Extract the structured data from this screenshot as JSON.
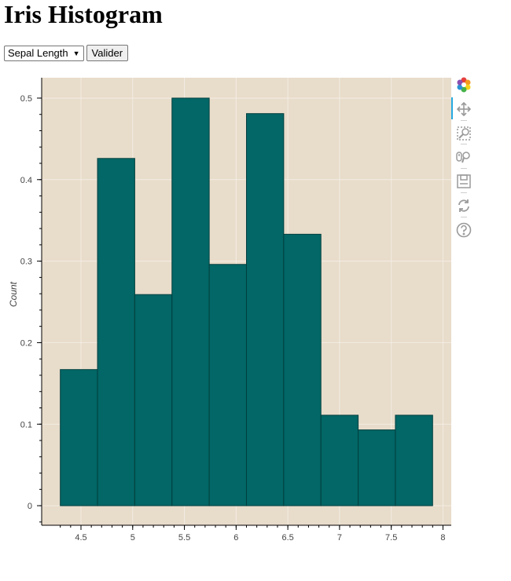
{
  "page": {
    "title": "Iris Histogram"
  },
  "controls": {
    "select_value": "Sepal Length",
    "button_label": "Valider"
  },
  "colors": {
    "bar_fill": "#026766",
    "bar_stroke": "#023f3f",
    "background": "#e8dcca"
  },
  "toolbar": [
    "bokeh-logo-icon",
    "pan-icon",
    "box-zoom-icon",
    "wheel-zoom-icon",
    "save-icon",
    "reset-icon",
    "help-icon"
  ],
  "chart_data": {
    "type": "bar",
    "title": "",
    "xlabel": "",
    "ylabel": "Count",
    "xlim": [
      4.12,
      8.08
    ],
    "ylim": [
      -0.024,
      0.525
    ],
    "grid": true,
    "x_ticks": [
      4.5,
      5,
      5.5,
      6,
      6.5,
      7,
      7.5,
      8
    ],
    "x_tick_labels": [
      "4.5",
      "5",
      "5.5",
      "6",
      "6.5",
      "7",
      "7.5",
      "8"
    ],
    "y_ticks": [
      0,
      0.1,
      0.2,
      0.3,
      0.4,
      0.5
    ],
    "y_tick_labels": [
      "0",
      "0.1",
      "0.2",
      "0.3",
      "0.4",
      "0.5"
    ],
    "bins": [
      {
        "left": 4.3,
        "right": 4.66,
        "value": 0.167
      },
      {
        "left": 4.66,
        "right": 5.02,
        "value": 0.426
      },
      {
        "left": 5.02,
        "right": 5.38,
        "value": 0.259
      },
      {
        "left": 5.38,
        "right": 5.74,
        "value": 0.5
      },
      {
        "left": 5.74,
        "right": 6.1,
        "value": 0.296
      },
      {
        "left": 6.1,
        "right": 6.46,
        "value": 0.481
      },
      {
        "left": 6.46,
        "right": 6.82,
        "value": 0.333
      },
      {
        "left": 6.82,
        "right": 7.18,
        "value": 0.111
      },
      {
        "left": 7.18,
        "right": 7.54,
        "value": 0.093
      },
      {
        "left": 7.54,
        "right": 7.9,
        "value": 0.111
      }
    ]
  }
}
